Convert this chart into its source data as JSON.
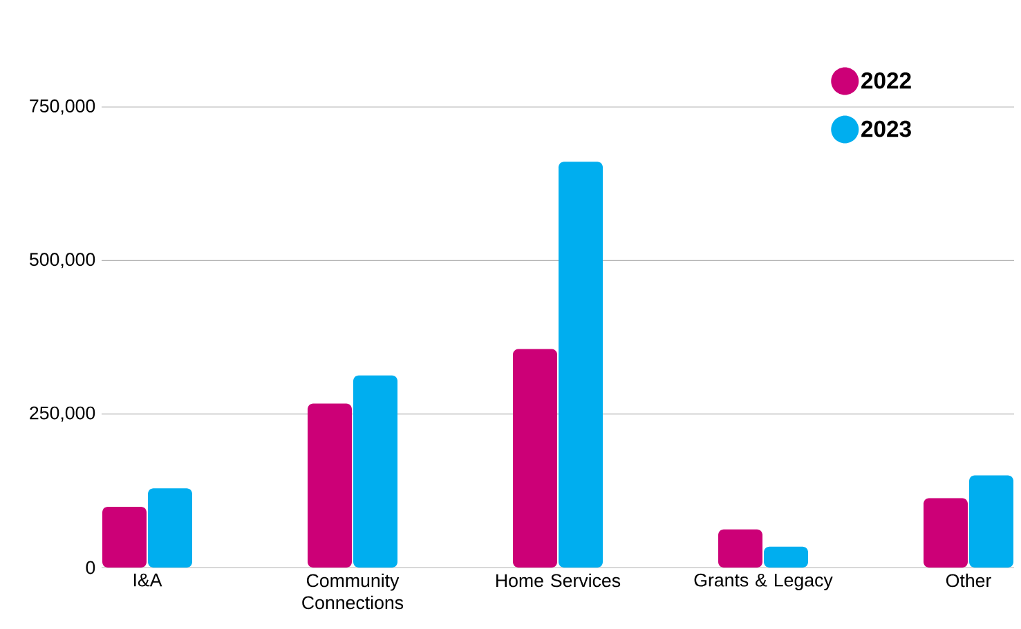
{
  "chart_data": {
    "type": "bar",
    "categories": [
      "I&A",
      "Community Connections",
      "Home Services",
      "Grants & Legacy",
      "Other"
    ],
    "series": [
      {
        "name": "2022",
        "color": "#cc0077",
        "values": [
          99000,
          267000,
          356000,
          62000,
          113000
        ]
      },
      {
        "name": "2023",
        "color": "#00aeef",
        "values": [
          129000,
          313000,
          661000,
          34000,
          150000
        ]
      }
    ],
    "ylim": [
      0,
      750000
    ],
    "yticks": [
      0,
      {
        "value": 250000,
        "label": "250,000"
      },
      {
        "value": 500000,
        "label": "500,000"
      },
      {
        "value": 750000,
        "label": "750,000"
      }
    ],
    "grid": "y",
    "legend": "top right"
  }
}
